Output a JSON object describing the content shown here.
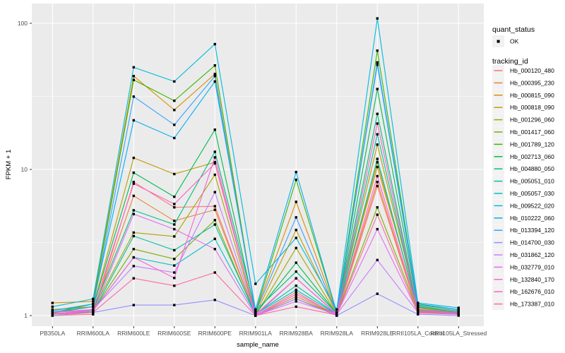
{
  "figure": {
    "background": "#FFFFFF",
    "panel_bg": "#EBEBEB",
    "grid_color": "#FFFFFF",
    "legend_key_bg": "#F2F2F2",
    "tick_label_color": "#4D4D4D",
    "point_color": "#000000"
  },
  "chart_data": {
    "type": "line",
    "title": "",
    "xlabel": "sample_name",
    "ylabel": "FPKM + 1",
    "y_scale": "log10",
    "y_ticks": [
      "1",
      "10",
      "100"
    ],
    "y_tick_values": [
      1,
      10,
      100
    ],
    "ylim": [
      0.85,
      135
    ],
    "grid": true,
    "legend_position": "right",
    "point_shape": "filled-square",
    "categories": [
      "PB350LA",
      "RRIM600LA",
      "RRIM600LE",
      "RRIM600SE",
      "RRIM600PE",
      "RRIM901LA",
      "RRIM928BA",
      "RRIM928LA",
      "RRIM928LE",
      "RRII105LA_Control",
      "RRII105LA_Stressed"
    ],
    "legend": {
      "quant_status": {
        "title": "quant_status",
        "entries": [
          {
            "label": "OK",
            "glyph": "point"
          }
        ]
      },
      "tracking_id": {
        "title": "tracking_id"
      }
    },
    "series": [
      {
        "name": "Hb_000120_480",
        "color": "#F8766D",
        "values": [
          1.0,
          1.02,
          8.2,
          5.5,
          5.6,
          1.0,
          1.45,
          1.0,
          7.7,
          1.05,
          1.02
        ]
      },
      {
        "name": "Hb_000395_230",
        "color": "#EA8331",
        "values": [
          1.02,
          1.05,
          6.6,
          4.45,
          5.3,
          1.0,
          1.35,
          1.02,
          8.2,
          1.06,
          1.03
        ]
      },
      {
        "name": "Hb_000815_090",
        "color": "#D89000",
        "values": [
          1.22,
          1.25,
          43.5,
          25.5,
          45.0,
          1.05,
          6.0,
          1.05,
          10.4,
          1.15,
          1.08
        ]
      },
      {
        "name": "Hb_000818_090",
        "color": "#C09B00",
        "values": [
          1.1,
          1.15,
          12.0,
          9.3,
          11.2,
          1.02,
          3.85,
          1.03,
          14.8,
          1.12,
          1.05
        ]
      },
      {
        "name": "Hb_001296_060",
        "color": "#A3A500",
        "values": [
          1.05,
          1.1,
          3.7,
          3.48,
          9.2,
          1.0,
          2.9,
          1.02,
          11.2,
          1.1,
          1.04
        ]
      },
      {
        "name": "Hb_001417_060",
        "color": "#7CAE00",
        "values": [
          1.03,
          1.08,
          2.85,
          2.44,
          4.5,
          1.0,
          1.3,
          1.02,
          5.5,
          1.07,
          1.03
        ]
      },
      {
        "name": "Hb_001789_120",
        "color": "#39B600",
        "values": [
          1.05,
          1.2,
          41.0,
          29.5,
          51.5,
          1.05,
          8.5,
          1.05,
          65.0,
          1.18,
          1.1
        ]
      },
      {
        "name": "Hb_002713_060",
        "color": "#00BB4E",
        "values": [
          1.04,
          1.15,
          9.5,
          6.5,
          18.7,
          1.03,
          2.3,
          1.03,
          35.5,
          1.14,
          1.06
        ]
      },
      {
        "name": "Hb_004880_050",
        "color": "#00BF7D",
        "values": [
          1.02,
          1.1,
          5.25,
          4.2,
          13.2,
          1.08,
          2.0,
          1.04,
          24.0,
          1.1,
          1.05
        ]
      },
      {
        "name": "Hb_005051_010",
        "color": "#00C1A3",
        "values": [
          1.03,
          1.06,
          3.5,
          2.8,
          4.2,
          1.02,
          1.6,
          1.02,
          17.4,
          1.09,
          1.04
        ]
      },
      {
        "name": "Hb_005057_030",
        "color": "#00BFC4",
        "values": [
          1.02,
          1.08,
          2.5,
          2.2,
          3.35,
          1.02,
          1.5,
          1.02,
          11.8,
          1.08,
          1.04
        ]
      },
      {
        "name": "Hb_009522_020",
        "color": "#00BAE0",
        "values": [
          1.15,
          1.3,
          50.0,
          40.0,
          72.0,
          1.65,
          3.4,
          1.1,
          108.0,
          1.22,
          1.13
        ]
      },
      {
        "name": "Hb_010222_060",
        "color": "#00B0F6",
        "values": [
          1.08,
          1.2,
          21.7,
          16.4,
          40.0,
          1.1,
          9.6,
          1.05,
          54.0,
          1.2,
          1.1
        ]
      },
      {
        "name": "Hb_013394_120",
        "color": "#35A2FF",
        "values": [
          1.06,
          1.15,
          31.5,
          20.2,
          43.5,
          1.05,
          4.7,
          1.04,
          52.0,
          1.16,
          1.08
        ]
      },
      {
        "name": "Hb_014700_030",
        "color": "#9590FF",
        "values": [
          1.0,
          1.05,
          1.18,
          1.18,
          1.28,
          1.0,
          1.3,
          1.0,
          1.41,
          1.02,
          1.0
        ]
      },
      {
        "name": "Hb_031862_120",
        "color": "#C77CFF",
        "values": [
          1.02,
          1.1,
          2.18,
          1.97,
          7.0,
          1.0,
          1.8,
          1.02,
          2.4,
          1.05,
          1.02
        ]
      },
      {
        "name": "Hb_032779_010",
        "color": "#E76BF3",
        "values": [
          1.03,
          1.05,
          4.95,
          3.9,
          2.85,
          1.0,
          1.25,
          1.02,
          3.9,
          1.05,
          1.02
        ]
      },
      {
        "name": "Hb_132840_170",
        "color": "#FA62DB",
        "values": [
          1.02,
          1.08,
          2.5,
          1.81,
          12.1,
          1.0,
          1.4,
          1.02,
          9.0,
          1.08,
          1.03
        ]
      },
      {
        "name": "Hb_162676_010",
        "color": "#FF61C3",
        "values": [
          1.05,
          1.1,
          8.0,
          5.8,
          11.0,
          1.02,
          1.8,
          1.03,
          20.6,
          1.1,
          1.05
        ]
      },
      {
        "name": "Hb_173387_010",
        "color": "#FF67A4",
        "values": [
          1.02,
          1.05,
          1.8,
          1.6,
          1.97,
          1.0,
          1.15,
          1.01,
          4.9,
          1.04,
          1.02
        ]
      }
    ]
  }
}
